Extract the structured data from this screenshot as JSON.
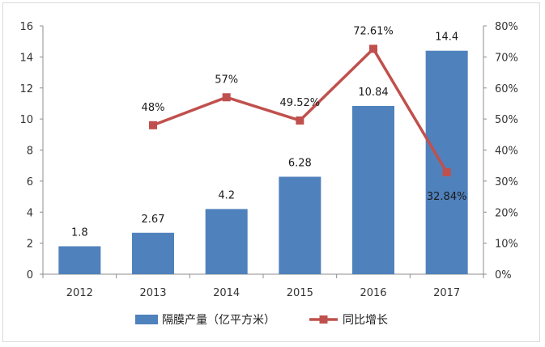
{
  "chart_data": {
    "type": "bar",
    "categories": [
      "2012",
      "2013",
      "2014",
      "2015",
      "2016",
      "2017"
    ],
    "series": [
      {
        "name": "隔膜产量（亿平方米）",
        "type": "bar",
        "axis": "left",
        "color": "#4f81bd",
        "values": [
          1.8,
          2.67,
          4.2,
          6.28,
          10.84,
          14.4
        ],
        "labels": [
          "1.8",
          "2.67",
          "4.2",
          "6.28",
          "10.84",
          "14.4"
        ]
      },
      {
        "name": "同比增长",
        "type": "line",
        "axis": "right",
        "color": "#c0504d",
        "values": [
          null,
          48,
          57,
          49.52,
          72.61,
          32.84
        ],
        "labels": [
          "",
          "48%",
          "57%",
          "49.52%",
          "72.61%",
          "32.84%"
        ]
      }
    ],
    "y_left": {
      "range": [
        0,
        16
      ],
      "ticks": [
        "0",
        "2",
        "4",
        "6",
        "8",
        "10",
        "12",
        "14",
        "16"
      ]
    },
    "y_right": {
      "range": [
        0,
        80
      ],
      "ticks": [
        "0%",
        "10%",
        "20%",
        "30%",
        "40%",
        "50%",
        "60%",
        "70%",
        "80%"
      ]
    },
    "grid": false,
    "legend": "bottom"
  }
}
